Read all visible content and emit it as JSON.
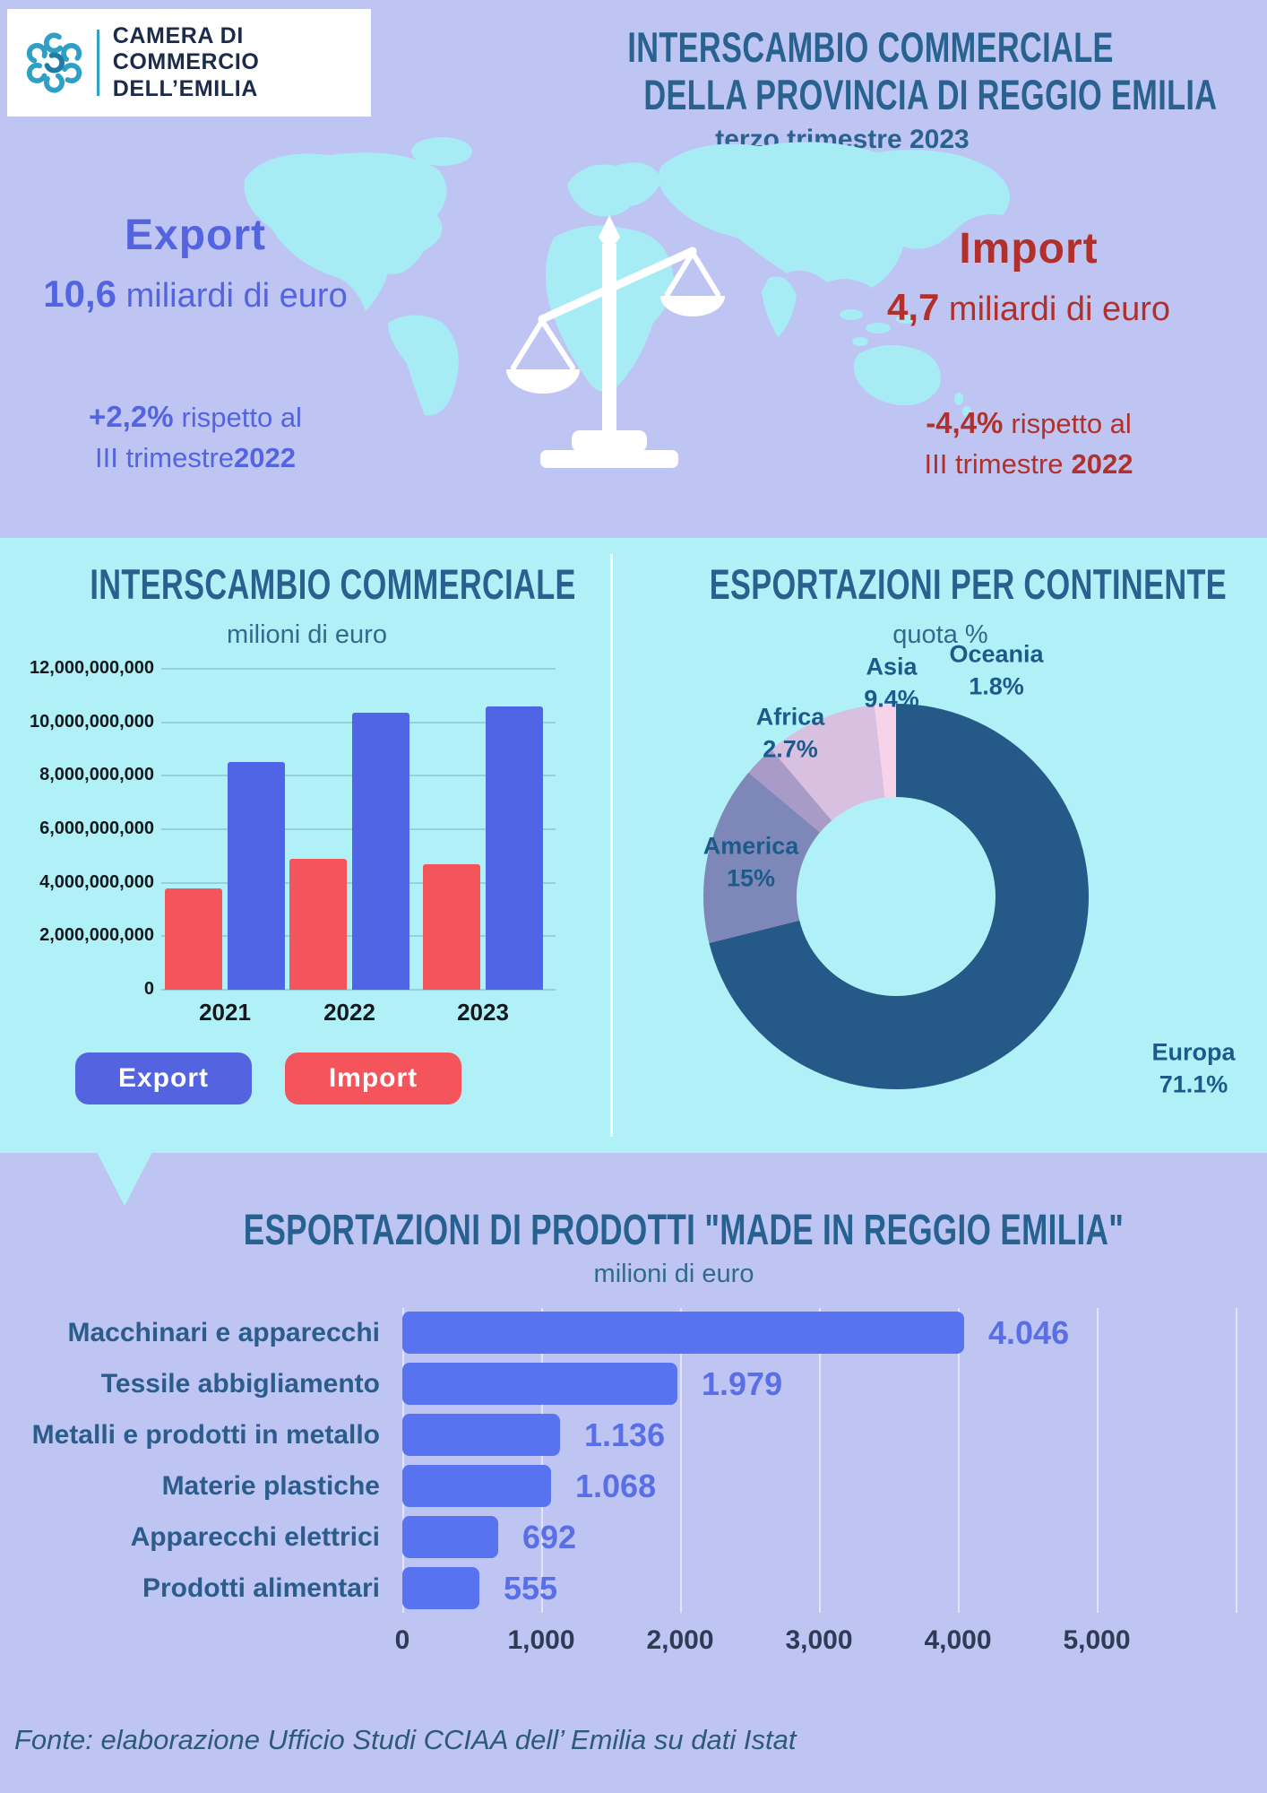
{
  "colors": {
    "page_bg": "#bec5f3",
    "panel_bg": "#b0f1f7",
    "heading_blue": "#27618f",
    "export_accent": "#5464e0",
    "import_accent": "#b2302b",
    "import_bar_red": "#f4555c",
    "export_bar_blue": "#5064e6",
    "hbar_blue": "#5873f0",
    "logo_teal": "#2e9fc6",
    "white": "#ffffff"
  },
  "icons": {
    "logo_mark": "chamber-chain-logo",
    "world_map": "world-map-silhouette",
    "balance": "balance-scale"
  },
  "logo": {
    "line1": "CAMERA DI COMMERCIO",
    "line2": "DELL’EMILIA"
  },
  "header": {
    "title_line1": "INTERSCAMBIO COMMERCIALE",
    "title_line2": "DELLA PROVINCIA DI REGGIO EMILIA",
    "subtitle": "terzo trimestre 2023"
  },
  "summary": {
    "export": {
      "label": "Export",
      "value": "10,6",
      "unit": "miliardi di euro",
      "delta": "+2,2%",
      "delta_text": "rispetto al",
      "period": "III trimestre",
      "period_year": "2022"
    },
    "import": {
      "label": "Import",
      "value": "4,7",
      "unit": "miliardi di euro",
      "delta": "-4,4%",
      "delta_text": "rispetto al",
      "period": "III trimestre",
      "period_year": "2022"
    }
  },
  "chart_data": [
    {
      "type": "bar",
      "title": "INTERSCAMBIO COMMERCIALE",
      "subtitle": "milioni di euro",
      "categories": [
        "2021",
        "2022",
        "2023"
      ],
      "series": [
        {
          "name": "Import",
          "color": "#f4555c",
          "values": [
            3800000000,
            4900000000,
            4700000000
          ]
        },
        {
          "name": "Export",
          "color": "#5064e6",
          "values": [
            8500000000,
            10350000000,
            10600000000
          ]
        }
      ],
      "ylim": [
        0,
        12000000000
      ],
      "ytick_step": 2000000000,
      "ytick_labels": [
        "0",
        "2,000,000,000",
        "4,000,000,000",
        "6,000,000,000",
        "8,000,000,000",
        "10,000,000,000",
        "12,000,000,000"
      ],
      "grid": true,
      "legend_position": "bottom",
      "legend": [
        {
          "label": "Export",
          "color": "#5464e0"
        },
        {
          "label": "Import",
          "color": "#f4555c"
        }
      ]
    },
    {
      "type": "pie",
      "title": "ESPORTAZIONI PER CONTINENTE",
      "subtitle": "quota %",
      "labels": [
        "Europa",
        "America",
        "Africa",
        "Asia",
        "Oceania"
      ],
      "values": [
        71.1,
        15,
        2.7,
        9.4,
        1.8
      ],
      "display_values": [
        "71.1%",
        "15%",
        "2.7%",
        "9.4%",
        "1.8%"
      ],
      "colors": [
        "#255a88",
        "#7e88b8",
        "#a89bc8",
        "#d8c0e0",
        "#f6d3e8"
      ],
      "donut": true,
      "start_angle_deg": 0,
      "direction": "clockwise"
    },
    {
      "type": "bar",
      "orientation": "horizontal",
      "title": "ESPORTAZIONI DI PRODOTTI \"MADE IN REGGIO EMILIA\"",
      "subtitle": "milioni di euro",
      "categories": [
        "Macchinari e apparecchi",
        "Tessile abbigliamento",
        "Metalli e prodotti in metallo",
        "Materie plastiche",
        "Apparecchi elettrici",
        "Prodotti alimentari"
      ],
      "values": [
        4046,
        1979,
        1136,
        1068,
        692,
        555
      ],
      "value_labels": [
        "4.046",
        "1.979",
        "1.136",
        "1.068",
        "692",
        "555"
      ],
      "xlim": [
        0,
        6000
      ],
      "xtick_step": 1000,
      "xticks": [
        "0",
        "1,000",
        "2,000",
        "3,000",
        "4,000",
        "5,000"
      ],
      "bar_color": "#5873f0",
      "grid": true
    }
  ],
  "footer": {
    "text": "Fonte: elaborazione Ufficio Studi CCIAA dell’ Emilia su dati Istat"
  }
}
